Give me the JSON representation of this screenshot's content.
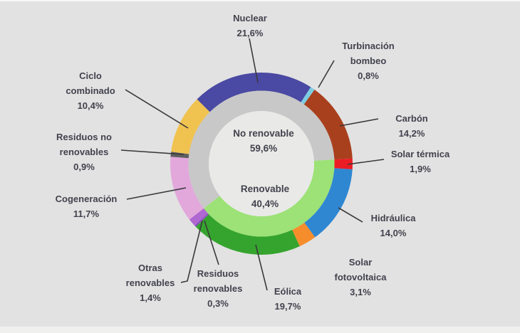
{
  "page": {
    "background_color": "#E2E2E2",
    "text_color": "#42424E",
    "leader_line_color": "#3A3A3A",
    "hole_color": "#E9E9E7"
  },
  "chart_data": {
    "type": "pie",
    "variant": "two-ring-donut",
    "units": "%",
    "direction": "clockwise",
    "start_angle_deg": -45,
    "outer_ring": [
      {
        "name": "Nuclear",
        "value": 21.6,
        "label": "Nuclear\n21,6%",
        "color": "#4A49A3"
      },
      {
        "name": "Turbinación bombeo",
        "value": 0.8,
        "label": "Turbinación\nbombeo\n0,8%",
        "color": "#7DCDE2"
      },
      {
        "name": "Carbón",
        "value": 14.2,
        "label": "Carbón\n14,2%",
        "color": "#A9401D"
      },
      {
        "name": "Solar térmica",
        "value": 1.9,
        "label": "Solar térmica\n1,9%",
        "color": "#EC1C24"
      },
      {
        "name": "Hidráulica",
        "value": 14.0,
        "label": "Hidráulica\n14,0%",
        "color": "#2F87D2"
      },
      {
        "name": "Solar fotovoltaica",
        "value": 3.1,
        "label": "Solar\nfotovoltaica\n3,1%",
        "color": "#F68D2C"
      },
      {
        "name": "Eólica",
        "value": 19.7,
        "label": "Eólica\n19,7%",
        "color": "#35A42E"
      },
      {
        "name": "Residuos renovables",
        "value": 0.3,
        "label": "Residuos\nrenovables\n0,3%",
        "color": "#8A4FC0"
      },
      {
        "name": "Otras renovables",
        "value": 1.4,
        "label": "Otras\nrenovables\n1,4%",
        "color": "#AF67D1"
      },
      {
        "name": "Cogeneración",
        "value": 11.7,
        "label": "Cogeneración\n11,7%",
        "color": "#E2A8DC"
      },
      {
        "name": "Residuos no renovables",
        "value": 0.9,
        "label": "Residuos no\nrenovables\n0,9%",
        "color": "#5F5F5F"
      },
      {
        "name": "Ciclo combinado",
        "value": 10.4,
        "label": "Ciclo\ncombinado\n10,4%",
        "color": "#F0C350"
      }
    ],
    "inner_ring": [
      {
        "name": "No renovable",
        "value": 59.6,
        "label": "No renovable\n59,6%",
        "color": "#C8C8C8"
      },
      {
        "name": "Renovable",
        "value": 40.4,
        "label": "Renovable\n40,4%",
        "color": "#9CE276"
      }
    ]
  }
}
